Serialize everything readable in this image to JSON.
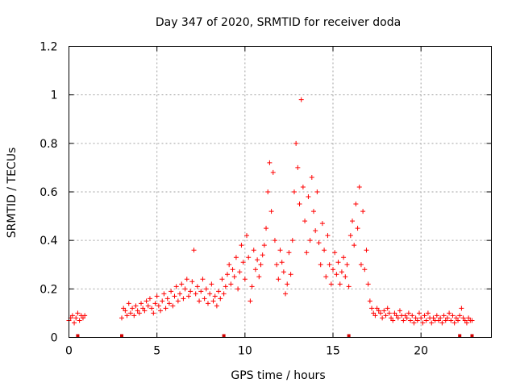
{
  "chart_data": {
    "type": "scatter",
    "title": "Day 347 of 2020, SRMTID for receiver doda",
    "xlabel": "GPS time / hours",
    "ylabel": "SRMTID / TECUs",
    "xlim": [
      0,
      24
    ],
    "ylim": [
      0,
      1.2
    ],
    "xticks": [
      0,
      5,
      10,
      15,
      20
    ],
    "xtick_labels": [
      "0",
      "5",
      "10",
      "15",
      "20"
    ],
    "yticks": [
      0,
      0.2,
      0.4,
      0.6,
      0.8,
      1,
      1.2
    ],
    "ytick_labels": [
      "0",
      "0.2",
      "0.4",
      "0.6",
      "0.8",
      "1",
      "1.2"
    ],
    "grid": true,
    "marker": "+",
    "color": "#ff0000",
    "gap_markers_x": [
      0.5,
      3.0,
      8.8,
      15.9,
      22.2,
      22.9
    ],
    "series": [
      {
        "name": "SRMTID",
        "x": [
          0.0,
          0.1,
          0.2,
          0.3,
          0.4,
          0.5,
          0.6,
          0.7,
          0.8,
          0.9,
          3.0,
          3.1,
          3.2,
          3.3,
          3.4,
          3.5,
          3.6,
          3.7,
          3.8,
          3.9,
          4.0,
          4.1,
          4.2,
          4.3,
          4.4,
          4.5,
          4.6,
          4.7,
          4.8,
          4.9,
          5.0,
          5.1,
          5.2,
          5.3,
          5.4,
          5.5,
          5.6,
          5.7,
          5.8,
          5.9,
          6.0,
          6.1,
          6.2,
          6.3,
          6.4,
          6.5,
          6.6,
          6.7,
          6.8,
          6.9,
          7.0,
          7.1,
          7.2,
          7.3,
          7.4,
          7.5,
          7.6,
          7.7,
          7.8,
          7.9,
          8.0,
          8.1,
          8.2,
          8.3,
          8.4,
          8.5,
          8.6,
          8.7,
          8.8,
          8.9,
          9.0,
          9.1,
          9.2,
          9.3,
          9.4,
          9.5,
          9.6,
          9.7,
          9.8,
          9.9,
          10.0,
          10.1,
          10.2,
          10.3,
          10.4,
          10.5,
          10.6,
          10.7,
          10.8,
          10.9,
          11.0,
          11.1,
          11.2,
          11.3,
          11.4,
          11.5,
          11.6,
          11.7,
          11.8,
          11.9,
          12.0,
          12.1,
          12.2,
          12.3,
          12.4,
          12.5,
          12.6,
          12.7,
          12.8,
          12.9,
          13.0,
          13.1,
          13.2,
          13.3,
          13.4,
          13.5,
          13.6,
          13.7,
          13.8,
          13.9,
          14.0,
          14.1,
          14.2,
          14.3,
          14.4,
          14.5,
          14.6,
          14.7,
          14.8,
          14.9,
          15.0,
          15.1,
          15.2,
          15.3,
          15.4,
          15.5,
          15.6,
          15.7,
          15.8,
          15.9,
          16.0,
          16.1,
          16.2,
          16.3,
          16.4,
          16.5,
          16.6,
          16.7,
          16.8,
          16.9,
          17.0,
          17.1,
          17.2,
          17.3,
          17.4,
          17.5,
          17.6,
          17.7,
          17.8,
          17.9,
          18.0,
          18.1,
          18.2,
          18.3,
          18.4,
          18.5,
          18.6,
          18.7,
          18.8,
          18.9,
          19.0,
          19.1,
          19.2,
          19.3,
          19.4,
          19.5,
          19.6,
          19.7,
          19.8,
          19.9,
          20.0,
          20.1,
          20.2,
          20.3,
          20.4,
          20.5,
          20.6,
          20.7,
          20.8,
          20.9,
          21.0,
          21.1,
          21.2,
          21.3,
          21.4,
          21.5,
          21.6,
          21.7,
          21.8,
          21.9,
          22.0,
          22.1,
          22.2,
          22.3,
          22.4,
          22.5,
          22.6,
          22.7,
          22.8,
          22.9
        ],
        "y": [
          0.07,
          0.08,
          0.09,
          0.06,
          0.08,
          0.1,
          0.07,
          0.09,
          0.08,
          0.09,
          0.08,
          0.12,
          0.11,
          0.09,
          0.14,
          0.1,
          0.12,
          0.09,
          0.13,
          0.11,
          0.1,
          0.14,
          0.12,
          0.11,
          0.15,
          0.13,
          0.16,
          0.12,
          0.1,
          0.14,
          0.17,
          0.13,
          0.11,
          0.15,
          0.18,
          0.12,
          0.16,
          0.14,
          0.19,
          0.13,
          0.17,
          0.21,
          0.15,
          0.18,
          0.22,
          0.16,
          0.2,
          0.24,
          0.17,
          0.19,
          0.23,
          0.36,
          0.18,
          0.21,
          0.15,
          0.19,
          0.24,
          0.16,
          0.2,
          0.14,
          0.18,
          0.22,
          0.15,
          0.17,
          0.13,
          0.19,
          0.16,
          0.24,
          0.18,
          0.21,
          0.26,
          0.3,
          0.22,
          0.28,
          0.25,
          0.33,
          0.2,
          0.27,
          0.38,
          0.31,
          0.24,
          0.42,
          0.33,
          0.15,
          0.21,
          0.36,
          0.28,
          0.32,
          0.25,
          0.3,
          0.34,
          0.38,
          0.45,
          0.6,
          0.72,
          0.52,
          0.68,
          0.4,
          0.3,
          0.24,
          0.36,
          0.31,
          0.27,
          0.18,
          0.22,
          0.35,
          0.26,
          0.4,
          0.6,
          0.8,
          0.7,
          0.55,
          0.98,
          0.62,
          0.48,
          0.35,
          0.58,
          0.4,
          0.66,
          0.52,
          0.44,
          0.6,
          0.39,
          0.3,
          0.47,
          0.36,
          0.25,
          0.42,
          0.3,
          0.22,
          0.28,
          0.35,
          0.26,
          0.31,
          0.22,
          0.27,
          0.33,
          0.25,
          0.3,
          0.21,
          0.42,
          0.48,
          0.38,
          0.55,
          0.45,
          0.62,
          0.3,
          0.52,
          0.28,
          0.36,
          0.22,
          0.15,
          0.12,
          0.1,
          0.09,
          0.12,
          0.11,
          0.1,
          0.08,
          0.11,
          0.09,
          0.12,
          0.1,
          0.08,
          0.07,
          0.1,
          0.09,
          0.08,
          0.11,
          0.09,
          0.07,
          0.09,
          0.08,
          0.1,
          0.07,
          0.09,
          0.06,
          0.08,
          0.07,
          0.1,
          0.08,
          0.06,
          0.09,
          0.07,
          0.1,
          0.08,
          0.06,
          0.08,
          0.07,
          0.09,
          0.07,
          0.08,
          0.06,
          0.09,
          0.07,
          0.08,
          0.1,
          0.07,
          0.09,
          0.06,
          0.08,
          0.07,
          0.09,
          0.12,
          0.08,
          0.07,
          0.06,
          0.08,
          0.07,
          0.07
        ]
      }
    ]
  }
}
